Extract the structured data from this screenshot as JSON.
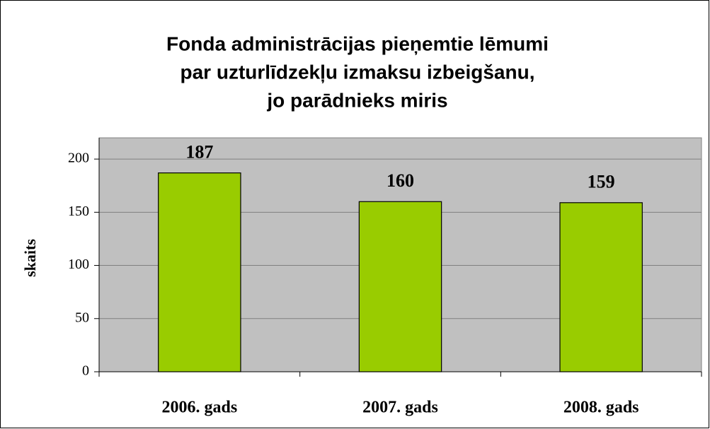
{
  "chart_data": {
    "type": "bar",
    "title": [
      "Fonda administrācijas pieņemtie lēmumi",
      "par uzturlīdzekļu izmaksu izbeigšanu,",
      "jo parādnieks miris"
    ],
    "y_label": "skaits",
    "categories": [
      "2006. gads",
      "2007. gads",
      "2008. gads"
    ],
    "values": [
      187,
      160,
      159
    ],
    "color": "#99cc00",
    "ylim": [
      0,
      220
    ],
    "yticks": [
      0,
      50,
      100,
      150,
      200
    ],
    "grid": true
  }
}
